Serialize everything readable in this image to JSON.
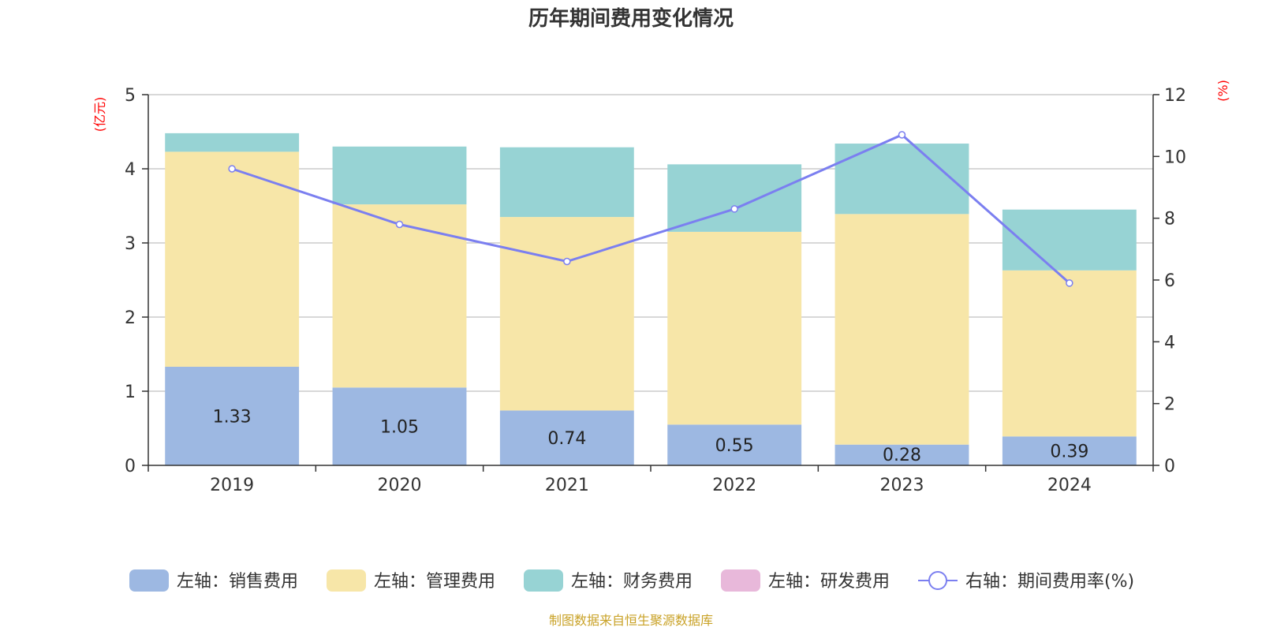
{
  "chart_data": {
    "type": "bar",
    "stacked": true,
    "title": "历年期间费用变化情况",
    "categories": [
      "2019",
      "2020",
      "2021",
      "2022",
      "2023",
      "2024"
    ],
    "left_axis": {
      "unit": "(亿元)",
      "ylim": [
        0,
        5
      ],
      "ticks": [
        "0",
        "1",
        "2",
        "3",
        "4",
        "5"
      ]
    },
    "right_axis": {
      "unit": "(%)",
      "ylim": [
        0,
        12
      ],
      "ticks": [
        "0",
        "2",
        "4",
        "6",
        "8",
        "10",
        "12"
      ]
    },
    "grid": true,
    "legend_position": "bottom",
    "series": [
      {
        "name": "左轴：销售费用",
        "axis": "left",
        "kind": "bar",
        "color": "#9db8e2",
        "values": [
          1.33,
          1.05,
          0.74,
          0.55,
          0.28,
          0.39
        ],
        "labels": [
          "1.33",
          "1.05",
          "0.74",
          "0.55",
          "0.28",
          "0.39"
        ]
      },
      {
        "name": "左轴：管理费用",
        "axis": "left",
        "kind": "bar",
        "color": "#f7e6a8",
        "values": [
          2.9,
          2.47,
          2.61,
          2.6,
          3.11,
          2.24
        ]
      },
      {
        "name": "左轴：财务费用",
        "axis": "left",
        "kind": "bar",
        "color": "#97d3d4",
        "values": [
          0.25,
          0.78,
          0.94,
          0.91,
          0.95,
          0.82
        ]
      },
      {
        "name": "左轴：研发费用",
        "axis": "left",
        "kind": "bar",
        "color": "#e8b8da",
        "values": [
          0,
          0,
          0,
          0,
          0,
          0
        ]
      },
      {
        "name": "右轴：期间费用率(%)",
        "axis": "right",
        "kind": "line",
        "color": "#7b7ff0",
        "values": [
          9.6,
          7.8,
          6.6,
          8.3,
          10.7,
          5.9
        ]
      }
    ],
    "source": "制图数据来自恒生聚源数据库"
  }
}
